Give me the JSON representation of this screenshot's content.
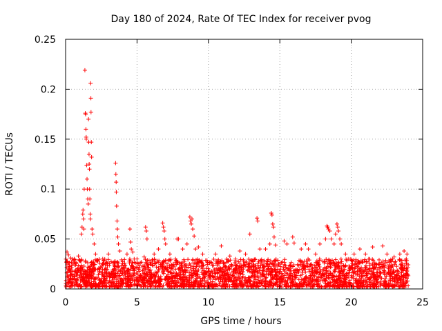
{
  "chart_data": {
    "type": "scatter",
    "title": "Day 180 of 2024, Rate Of TEC Index for receiver pvog",
    "xlabel": "GPS time / hours",
    "ylabel": "ROTI / TECUs",
    "xlim": [
      0,
      25
    ],
    "ylim": [
      0,
      0.25
    ],
    "x_ticks": [
      0,
      5,
      10,
      15,
      20,
      25
    ],
    "x_tick_labels": [
      "0",
      "5",
      "10",
      "15",
      "20",
      "25"
    ],
    "y_ticks": [
      0,
      0.05,
      0.1,
      0.15,
      0.2,
      0.25
    ],
    "y_tick_labels": [
      "0",
      "0.05",
      "0.1",
      "0.15",
      "0.2",
      "0.25"
    ],
    "grid": true,
    "marker": "+",
    "series": [
      {
        "name": "ROTI",
        "color": "#ff0000",
        "background_band": {
          "x_range": [
            0,
            24
          ],
          "typical_range": [
            0.002,
            0.03
          ],
          "note": "dense continuous band of points"
        },
        "points": [
          [
            0.1,
            0.037
          ],
          [
            0.2,
            0.034
          ],
          [
            0.35,
            0.031
          ],
          [
            0.6,
            0.03
          ],
          [
            0.9,
            0.033
          ],
          [
            1.1,
            0.055
          ],
          [
            1.15,
            0.062
          ],
          [
            1.2,
            0.075
          ],
          [
            1.22,
            0.079
          ],
          [
            1.25,
            0.07
          ],
          [
            1.28,
            0.06
          ],
          [
            1.3,
            0.1
          ],
          [
            1.35,
            0.219
          ],
          [
            1.38,
            0.176
          ],
          [
            1.4,
            0.175
          ],
          [
            1.42,
            0.16
          ],
          [
            1.44,
            0.152
          ],
          [
            1.45,
            0.15
          ],
          [
            1.47,
            0.124
          ],
          [
            1.5,
            0.11
          ],
          [
            1.52,
            0.1
          ],
          [
            1.55,
            0.09
          ],
          [
            1.58,
            0.085
          ],
          [
            1.6,
            0.17
          ],
          [
            1.62,
            0.147
          ],
          [
            1.64,
            0.135
          ],
          [
            1.65,
            0.125
          ],
          [
            1.67,
            0.12
          ],
          [
            1.68,
            0.1
          ],
          [
            1.7,
            0.09
          ],
          [
            1.72,
            0.075
          ],
          [
            1.73,
            0.07
          ],
          [
            1.75,
            0.206
          ],
          [
            1.77,
            0.191
          ],
          [
            1.78,
            0.177
          ],
          [
            1.8,
            0.147
          ],
          [
            1.82,
            0.132
          ],
          [
            1.85,
            0.06
          ],
          [
            1.9,
            0.055
          ],
          [
            2.0,
            0.045
          ],
          [
            2.1,
            0.035
          ],
          [
            2.6,
            0.03
          ],
          [
            3.0,
            0.035
          ],
          [
            3.5,
            0.126
          ],
          [
            3.52,
            0.115
          ],
          [
            3.54,
            0.107
          ],
          [
            3.55,
            0.097
          ],
          [
            3.57,
            0.083
          ],
          [
            3.6,
            0.068
          ],
          [
            3.62,
            0.06
          ],
          [
            3.65,
            0.052
          ],
          [
            3.7,
            0.045
          ],
          [
            3.8,
            0.038
          ],
          [
            4.3,
            0.035
          ],
          [
            4.5,
            0.06
          ],
          [
            4.55,
            0.047
          ],
          [
            4.6,
            0.04
          ],
          [
            4.7,
            0.037
          ],
          [
            5.0,
            0.03
          ],
          [
            5.5,
            0.032
          ],
          [
            5.6,
            0.062
          ],
          [
            5.65,
            0.058
          ],
          [
            5.7,
            0.05
          ],
          [
            6.2,
            0.035
          ],
          [
            6.5,
            0.04
          ],
          [
            6.8,
            0.066
          ],
          [
            6.85,
            0.062
          ],
          [
            6.9,
            0.058
          ],
          [
            6.95,
            0.05
          ],
          [
            7.0,
            0.045
          ],
          [
            7.3,
            0.035
          ],
          [
            7.8,
            0.05
          ],
          [
            7.9,
            0.05
          ],
          [
            8.2,
            0.04
          ],
          [
            8.5,
            0.045
          ],
          [
            8.7,
            0.072
          ],
          [
            8.75,
            0.068
          ],
          [
            8.8,
            0.065
          ],
          [
            8.85,
            0.07
          ],
          [
            8.9,
            0.06
          ],
          [
            9.0,
            0.053
          ],
          [
            9.1,
            0.04
          ],
          [
            9.3,
            0.042
          ],
          [
            9.6,
            0.035
          ],
          [
            10.5,
            0.035
          ],
          [
            10.9,
            0.043
          ],
          [
            11.5,
            0.033
          ],
          [
            12.2,
            0.038
          ],
          [
            12.6,
            0.035
          ],
          [
            12.9,
            0.055
          ],
          [
            13.4,
            0.071
          ],
          [
            13.45,
            0.068
          ],
          [
            13.6,
            0.04
          ],
          [
            14.0,
            0.04
          ],
          [
            14.3,
            0.045
          ],
          [
            14.4,
            0.076
          ],
          [
            14.45,
            0.074
          ],
          [
            14.5,
            0.065
          ],
          [
            14.55,
            0.062
          ],
          [
            14.6,
            0.052
          ],
          [
            14.7,
            0.044
          ],
          [
            15.3,
            0.048
          ],
          [
            15.5,
            0.045
          ],
          [
            15.9,
            0.052
          ],
          [
            16.0,
            0.046
          ],
          [
            16.5,
            0.04
          ],
          [
            16.8,
            0.045
          ],
          [
            17.0,
            0.04
          ],
          [
            17.5,
            0.035
          ],
          [
            17.8,
            0.045
          ],
          [
            18.2,
            0.05
          ],
          [
            18.3,
            0.063
          ],
          [
            18.35,
            0.062
          ],
          [
            18.4,
            0.06
          ],
          [
            18.5,
            0.058
          ],
          [
            18.6,
            0.05
          ],
          [
            18.8,
            0.045
          ],
          [
            18.9,
            0.055
          ],
          [
            19.0,
            0.065
          ],
          [
            19.05,
            0.062
          ],
          [
            19.1,
            0.058
          ],
          [
            19.2,
            0.05
          ],
          [
            19.3,
            0.045
          ],
          [
            19.6,
            0.035
          ],
          [
            20.2,
            0.035
          ],
          [
            20.6,
            0.04
          ],
          [
            21.0,
            0.035
          ],
          [
            21.5,
            0.042
          ],
          [
            22.2,
            0.043
          ],
          [
            22.5,
            0.035
          ],
          [
            23.0,
            0.032
          ],
          [
            23.4,
            0.035
          ],
          [
            23.7,
            0.038
          ],
          [
            23.9,
            0.035
          ]
        ]
      }
    ]
  }
}
